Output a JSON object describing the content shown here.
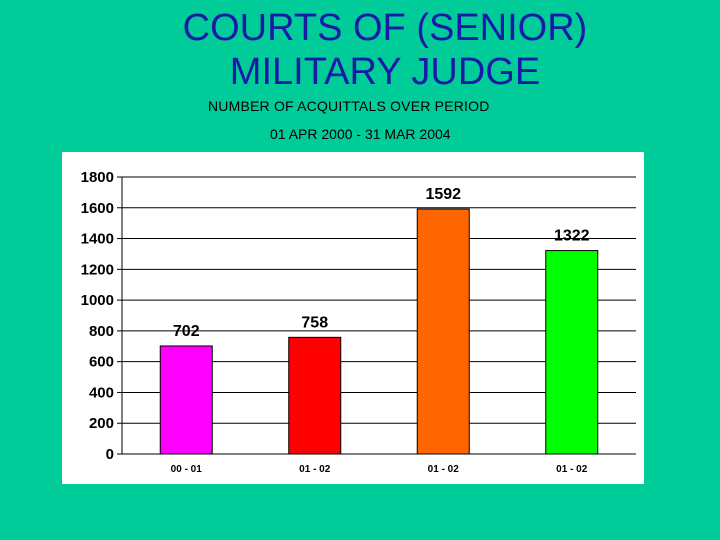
{
  "slide": {
    "title_line1": "COURTS OF (SENIOR)",
    "title_line2": "MILITARY JUDGE",
    "subtitle": "NUMBER OF ACQUITTALS OVER PERIOD",
    "period": "01 APR 2000 - 31 MAR 2004"
  },
  "chart_data": {
    "type": "bar",
    "categories": [
      "00 - 01",
      "01 - 02",
      "01 - 02",
      "01 - 02"
    ],
    "values": [
      702,
      758,
      1592,
      1322
    ],
    "data_labels": [
      "702",
      "758",
      "1592",
      "1322"
    ],
    "bar_colors": [
      "#ff00ff",
      "#ff0000",
      "#ff6600",
      "#00ff00"
    ],
    "ylim": [
      0,
      1800
    ],
    "yticks": [
      "0",
      "200",
      "400",
      "600",
      "800",
      "1000",
      "1200",
      "1400",
      "1600",
      "1800"
    ],
    "grid": true,
    "legend": "none"
  }
}
